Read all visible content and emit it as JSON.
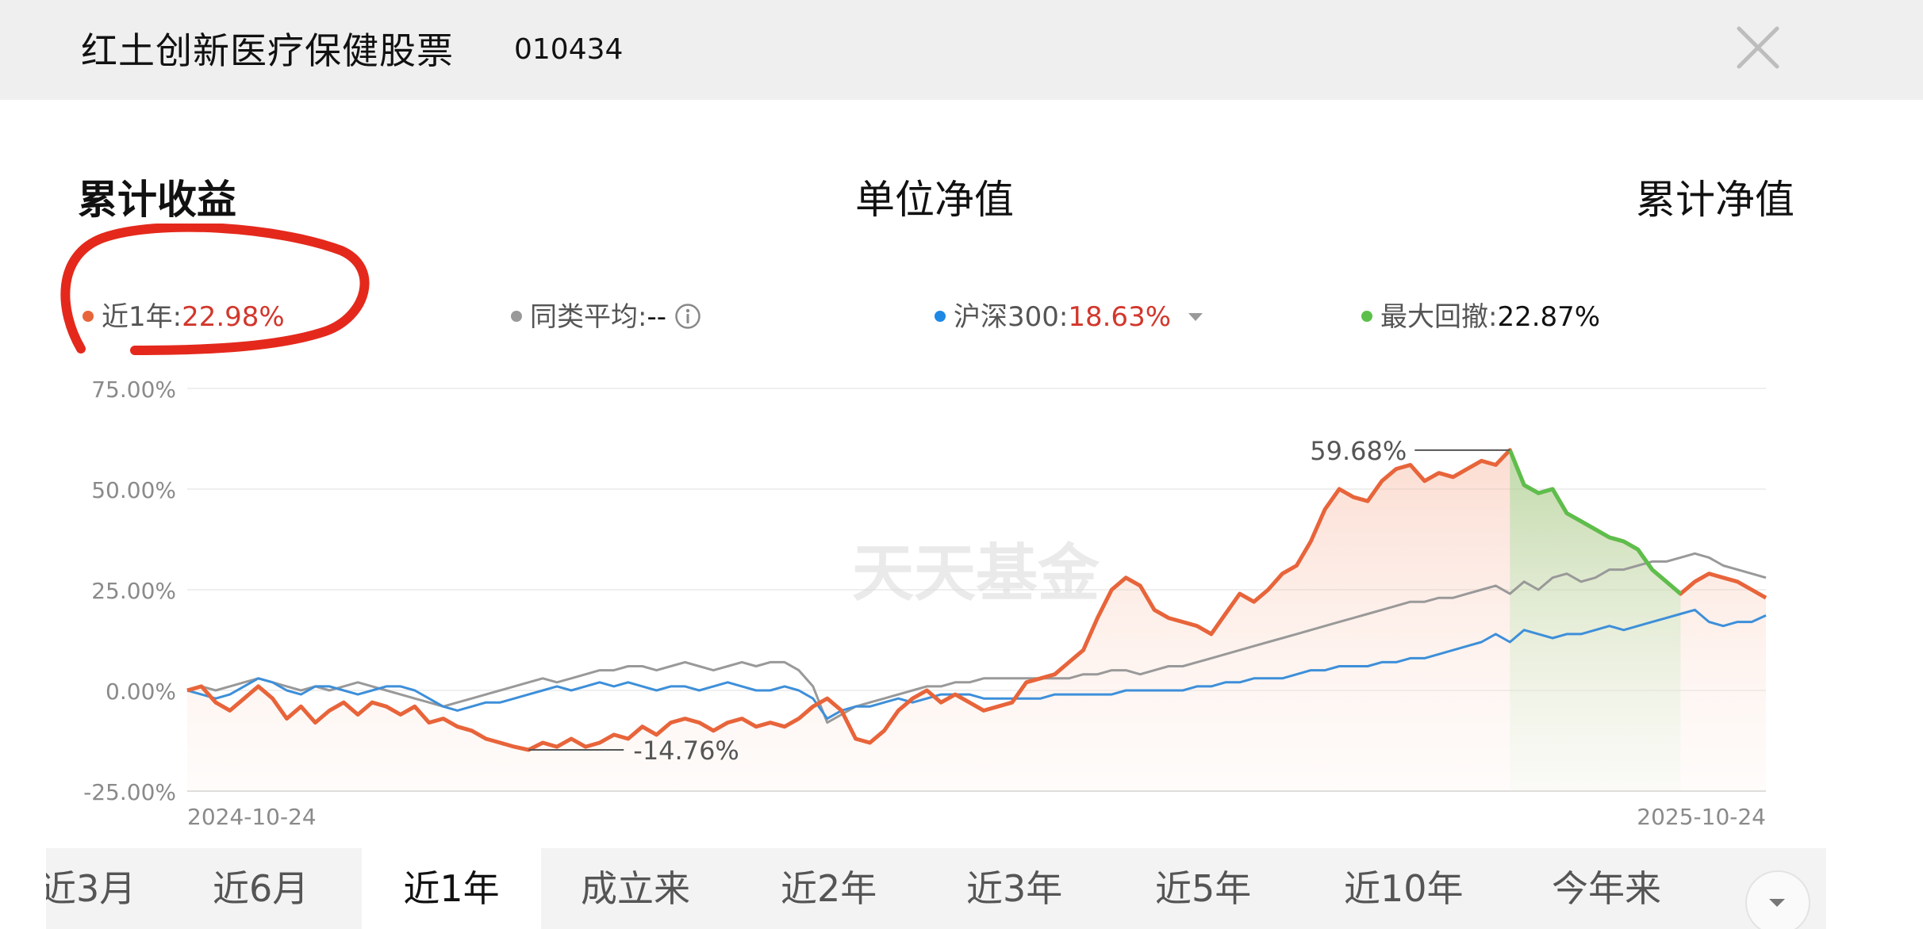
{
  "header": {
    "fund_name": "红土创新医疗保健股票",
    "fund_code": "010434"
  },
  "top_tabs": [
    "累计收益",
    "单位净值",
    "累计净值"
  ],
  "legend": {
    "fund": {
      "label": "近1年:",
      "value": "22.98%",
      "color": "#e8643a"
    },
    "category_avg": {
      "label": "同类平均:",
      "value": "--",
      "color": "#999999"
    },
    "hs300": {
      "label": "沪深300:",
      "value": "18.63%",
      "color": "#1e88e5"
    },
    "max_drawdown": {
      "label": "最大回撤:",
      "value": "22.87%",
      "color": "#5cbf4c"
    }
  },
  "watermark": "天天基金",
  "periods": [
    "近3月",
    "近6月",
    "近1年",
    "成立来",
    "近2年",
    "近3年",
    "近5年",
    "近10年",
    "今年来"
  ],
  "active_period": "近1年",
  "chart_data": {
    "type": "line",
    "x_start": "2024-10-24",
    "x_end": "2025-10-24",
    "x_tick_labels": [
      "2024-10-24",
      "2025-10-24"
    ],
    "ylim": [
      -25,
      75
    ],
    "y_ticks": [
      "75.00%",
      "50.00%",
      "25.00%",
      "0.00%",
      "-25.00%"
    ],
    "y_tick_values": [
      75,
      50,
      25,
      0,
      -25
    ],
    "grid": true,
    "annotations": [
      {
        "label": "59.68%",
        "series": "近1年",
        "kind": "max"
      },
      {
        "label": "-14.76%",
        "series": "近1年",
        "kind": "min"
      }
    ],
    "drawdown_shading": {
      "from_index": 93,
      "to_index": 105,
      "color": "#5cbf4c"
    },
    "series": [
      {
        "name": "近1年",
        "color": "#e8643a",
        "values": [
          0.0,
          1,
          -3,
          -5,
          -2,
          1,
          -2,
          -7,
          -4,
          -8,
          -5,
          -3,
          -6,
          -3,
          -4,
          -6,
          -4,
          -8,
          -7,
          -9,
          -10,
          -12,
          -13,
          -14,
          -14.76,
          -13,
          -14,
          -12,
          -14,
          -13,
          -11,
          -12,
          -9,
          -11,
          -8,
          -7,
          -8,
          -10,
          -8,
          -7,
          -9,
          -8,
          -9,
          -7,
          -4,
          -2,
          -5,
          -12,
          -13,
          -10,
          -5,
          -2,
          0,
          -3,
          -1,
          -3,
          -5,
          -4,
          -3,
          2,
          3,
          4,
          7,
          10,
          18,
          25,
          28,
          26,
          20,
          18,
          17,
          16,
          14,
          19,
          24,
          22,
          25,
          29,
          31,
          37,
          45,
          50,
          48,
          47,
          52,
          55,
          56,
          52,
          54,
          53,
          55,
          57,
          56,
          59.68,
          51,
          49,
          50,
          44,
          42,
          40,
          38,
          37,
          35,
          30,
          27,
          24,
          27,
          29,
          28,
          27,
          25,
          23
        ]
      },
      {
        "name": "同类平均",
        "color": "#999999",
        "values": [
          0.0,
          1,
          0,
          1,
          2,
          3,
          2,
          1,
          0,
          1,
          0,
          1,
          2,
          1,
          0,
          -1,
          -2,
          -3,
          -4,
          -3,
          -2,
          -1,
          0,
          1,
          2,
          3,
          2,
          3,
          4,
          5,
          5,
          6,
          6,
          5,
          6,
          7,
          6,
          5,
          6,
          7,
          6,
          7,
          7,
          5,
          1,
          -8,
          -6,
          -4,
          -3,
          -2,
          -1,
          0,
          1,
          1,
          2,
          2,
          3,
          3,
          3,
          3,
          3,
          3,
          3,
          4,
          4,
          5,
          5,
          4,
          5,
          6,
          6,
          7,
          8,
          9,
          10,
          11,
          12,
          13,
          14,
          15,
          16,
          17,
          18,
          19,
          20,
          21,
          22,
          22,
          23,
          23,
          24,
          25,
          26,
          24,
          27,
          25,
          28,
          29,
          27,
          28,
          30,
          30,
          31,
          32,
          32,
          33,
          34,
          33,
          31,
          30,
          29,
          28
        ]
      },
      {
        "name": "沪深300",
        "color": "#3d8fd9",
        "values": [
          0.0,
          -1,
          -2,
          -1,
          1,
          3,
          2,
          0,
          -1,
          1,
          1,
          0,
          -1,
          0,
          1,
          1,
          0,
          -2,
          -4,
          -5,
          -4,
          -3,
          -3,
          -2,
          -1,
          0,
          1,
          0,
          1,
          2,
          1,
          2,
          1,
          0,
          1,
          1,
          0,
          1,
          2,
          1,
          0,
          0,
          1,
          0,
          -2,
          -7,
          -5,
          -4,
          -4,
          -3,
          -2,
          -3,
          -2,
          -1,
          -1,
          -1,
          -2,
          -2,
          -2,
          -2,
          -2,
          -1,
          -1,
          -1,
          -1,
          -1,
          0,
          0,
          0,
          0,
          0,
          1,
          1,
          2,
          2,
          3,
          3,
          3,
          4,
          5,
          5,
          6,
          6,
          6,
          7,
          7,
          8,
          8,
          9,
          10,
          11,
          12,
          14,
          12,
          15,
          14,
          13,
          14,
          14,
          15,
          16,
          15,
          16,
          17,
          18,
          19,
          20,
          17,
          16,
          17,
          17,
          18.63
        ]
      }
    ]
  }
}
